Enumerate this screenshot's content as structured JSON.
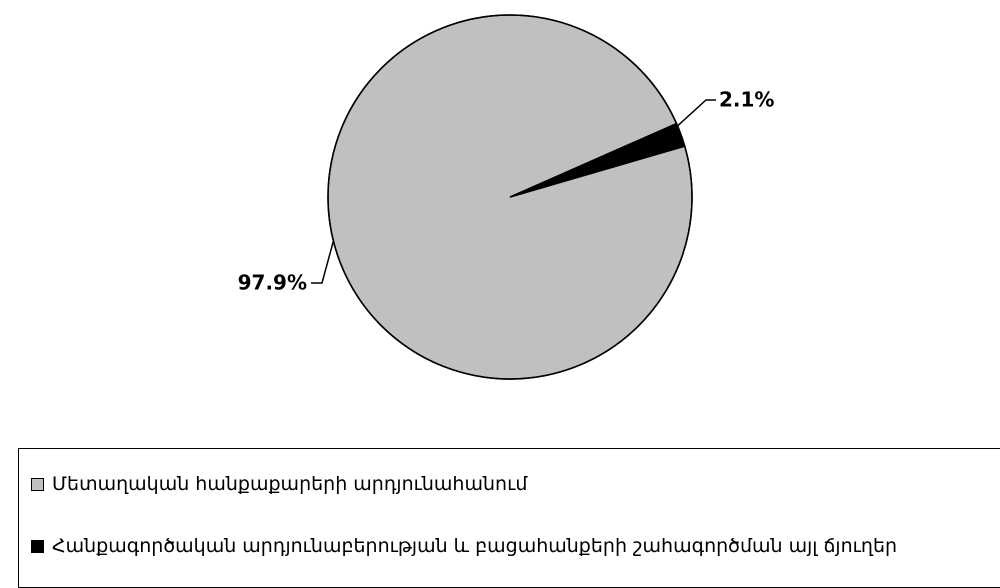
{
  "chart_data": {
    "type": "pie",
    "slices": [
      {
        "label": "Մետաղական հանքաքարերի արդյունահանում",
        "value": 97.9,
        "value_label": "97.9%",
        "color": "#c0c0c0"
      },
      {
        "label": "Հանքագործական արդյունաբերության և բացահանքերի շահագործման այլ ճյուղեր",
        "value": 2.1,
        "value_label": "2.1%",
        "color": "#000000"
      }
    ],
    "legend_position": "bottom",
    "outline_color": "#000000"
  }
}
